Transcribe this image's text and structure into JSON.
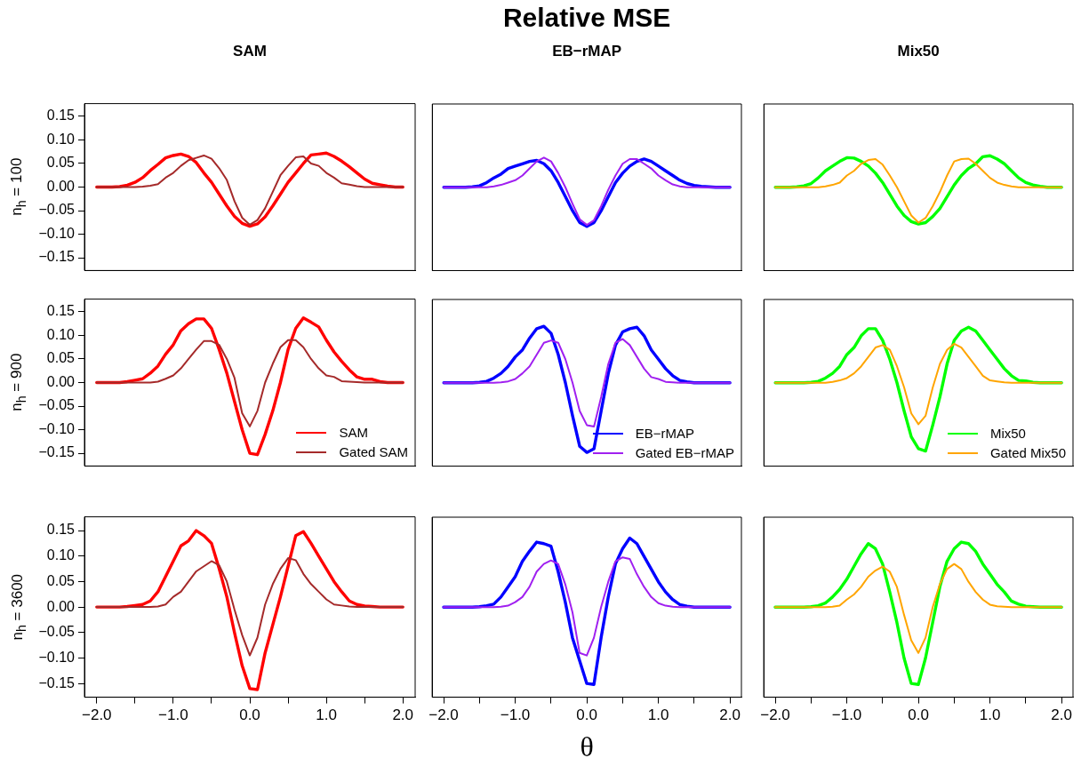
{
  "chart_data": [
    {
      "type": "line",
      "subtitle": "SAM",
      "ylabel": "n$_{h}$ = 100",
      "tick_labels": "y",
      "x": [
        -2,
        -1.9,
        -1.8,
        -1.7,
        -1.6,
        -1.5,
        -1.4,
        -1.3,
        -1.2,
        -1.1,
        -1,
        -0.9,
        -0.8,
        -0.7,
        -0.6,
        -0.5,
        -0.4,
        -0.3,
        -0.2,
        -0.1,
        0,
        0.1,
        0.2,
        0.3,
        0.4,
        0.5,
        0.6,
        0.7,
        0.8,
        0.9,
        1,
        1.1,
        1.2,
        1.3,
        1.4,
        1.5,
        1.6,
        1.7,
        1.8,
        1.9,
        2
      ],
      "xlim": [
        -2.16,
        2.16
      ],
      "ylim": [
        -0.177,
        0.177
      ],
      "yticks": [
        {
          "value": -0.15,
          "label": "−0.15"
        },
        {
          "value": -0.1,
          "label": "−0.10"
        },
        {
          "value": -0.05,
          "label": "−0.05"
        },
        {
          "value": 0,
          "label": "0.00"
        },
        {
          "value": 0.05,
          "label": "0.05"
        },
        {
          "value": 0.1,
          "label": "0.10"
        },
        {
          "value": 0.15,
          "label": "0.15"
        }
      ],
      "series": [
        {
          "color": "#ff0000",
          "values": [
            0,
            0,
            0,
            0.001,
            0.004,
            0.01,
            0.02,
            0.035,
            0.048,
            0.062,
            0.067,
            0.07,
            0.065,
            0.052,
            0.03,
            0.01,
            -0.015,
            -0.04,
            -0.062,
            -0.077,
            -0.083,
            -0.078,
            -0.063,
            -0.04,
            -0.015,
            0.01,
            0.03,
            0.05,
            0.068,
            0.07,
            0.072,
            0.065,
            0.055,
            0.043,
            0.03,
            0.017,
            0.008,
            0.005,
            0.002,
            0,
            0
          ]
        },
        {
          "color": "#a52a2a",
          "values": [
            0,
            0,
            0,
            0,
            0,
            0,
            0.001,
            0.003,
            0.006,
            0.02,
            0.03,
            0.045,
            0.057,
            0.062,
            0.067,
            0.06,
            0.04,
            0.015,
            -0.03,
            -0.065,
            -0.08,
            -0.07,
            -0.045,
            -0.01,
            0.025,
            0.045,
            0.063,
            0.065,
            0.05,
            0.045,
            0.03,
            0.02,
            0.008,
            0.005,
            0.002,
            0,
            0,
            0,
            0,
            0,
            0
          ]
        }
      ]
    },
    {
      "type": "line",
      "title": "Relative MSE",
      "subtitle": "EB−rMAP",
      "tick_labels": false,
      "x": [
        -2,
        -1.9,
        -1.8,
        -1.7,
        -1.6,
        -1.5,
        -1.4,
        -1.3,
        -1.2,
        -1.1,
        -1,
        -0.9,
        -0.8,
        -0.7,
        -0.6,
        -0.5,
        -0.4,
        -0.3,
        -0.2,
        -0.1,
        0,
        0.1,
        0.2,
        0.3,
        0.4,
        0.5,
        0.6,
        0.7,
        0.8,
        0.9,
        1,
        1.1,
        1.2,
        1.3,
        1.4,
        1.5,
        1.6,
        1.7,
        1.8,
        1.9,
        2
      ],
      "xlim": [
        -2.16,
        2.16
      ],
      "ylim": [
        -0.177,
        0.177
      ],
      "series": [
        {
          "color": "#0000ff",
          "values": [
            0,
            0,
            0,
            0,
            0.001,
            0.003,
            0.01,
            0.02,
            0.028,
            0.04,
            0.045,
            0.05,
            0.055,
            0.057,
            0.05,
            0.035,
            0.01,
            -0.02,
            -0.05,
            -0.075,
            -0.083,
            -0.075,
            -0.05,
            -0.02,
            0.01,
            0.03,
            0.045,
            0.055,
            0.06,
            0.055,
            0.045,
            0.035,
            0.025,
            0.015,
            0.008,
            0.004,
            0.002,
            0.001,
            0,
            0,
            0
          ]
        },
        {
          "color": "#a020f0",
          "values": [
            0,
            0,
            0,
            0,
            0,
            0,
            0,
            0.002,
            0.005,
            0.01,
            0.015,
            0.025,
            0.04,
            0.055,
            0.063,
            0.055,
            0.03,
            0,
            -0.035,
            -0.068,
            -0.08,
            -0.07,
            -0.04,
            -0.005,
            0.025,
            0.05,
            0.06,
            0.06,
            0.05,
            0.04,
            0.025,
            0.015,
            0.006,
            0.002,
            0,
            0,
            0,
            0,
            0,
            0,
            0
          ]
        }
      ]
    },
    {
      "type": "line",
      "subtitle": "Mix50",
      "tick_labels": false,
      "x": [
        -2,
        -1.9,
        -1.8,
        -1.7,
        -1.6,
        -1.5,
        -1.4,
        -1.3,
        -1.2,
        -1.1,
        -1,
        -0.9,
        -0.8,
        -0.7,
        -0.6,
        -0.5,
        -0.4,
        -0.3,
        -0.2,
        -0.1,
        0,
        0.1,
        0.2,
        0.3,
        0.4,
        0.5,
        0.6,
        0.7,
        0.8,
        0.9,
        1,
        1.1,
        1.2,
        1.3,
        1.4,
        1.5,
        1.6,
        1.7,
        1.8,
        1.9,
        2
      ],
      "xlim": [
        -2.16,
        2.16
      ],
      "ylim": [
        -0.177,
        0.177
      ],
      "series": [
        {
          "color": "#00ff00",
          "values": [
            0,
            0,
            0,
            0.001,
            0.003,
            0.008,
            0.02,
            0.035,
            0.045,
            0.055,
            0.063,
            0.062,
            0.055,
            0.045,
            0.03,
            0.01,
            -0.015,
            -0.04,
            -0.06,
            -0.073,
            -0.078,
            -0.075,
            -0.062,
            -0.045,
            -0.02,
            0.005,
            0.025,
            0.04,
            0.05,
            0.065,
            0.067,
            0.06,
            0.05,
            0.035,
            0.02,
            0.01,
            0.005,
            0.002,
            0,
            0,
            0
          ]
        },
        {
          "color": "#ffa500",
          "values": [
            0,
            0,
            0,
            0,
            0,
            0,
            0,
            0.002,
            0.005,
            0.01,
            0.025,
            0.035,
            0.05,
            0.058,
            0.06,
            0.048,
            0.025,
            0,
            -0.03,
            -0.06,
            -0.075,
            -0.065,
            -0.04,
            -0.01,
            0.025,
            0.055,
            0.06,
            0.061,
            0.05,
            0.035,
            0.02,
            0.01,
            0.005,
            0.002,
            0,
            0,
            0,
            0,
            0,
            0,
            0
          ]
        }
      ]
    },
    {
      "type": "line",
      "ylabel": "n$_{h}$ = 900",
      "tick_labels": "y",
      "legend": "bottom right",
      "x": [
        -2,
        -1.9,
        -1.8,
        -1.7,
        -1.6,
        -1.5,
        -1.4,
        -1.3,
        -1.2,
        -1.1,
        -1,
        -0.9,
        -0.8,
        -0.7,
        -0.6,
        -0.5,
        -0.4,
        -0.3,
        -0.2,
        -0.1,
        0,
        0.1,
        0.2,
        0.3,
        0.4,
        0.5,
        0.6,
        0.7,
        0.8,
        0.9,
        1,
        1.1,
        1.2,
        1.3,
        1.4,
        1.5,
        1.6,
        1.7,
        1.8,
        1.9,
        2
      ],
      "xlim": [
        -2.16,
        2.16
      ],
      "ylim": [
        -0.177,
        0.177
      ],
      "yticks": [
        {
          "value": -0.15,
          "label": "−0.15"
        },
        {
          "value": -0.1,
          "label": "−0.10"
        },
        {
          "value": -0.05,
          "label": "−0.05"
        },
        {
          "value": 0,
          "label": "0.00"
        },
        {
          "value": 0.05,
          "label": "0.05"
        },
        {
          "value": 0.1,
          "label": "0.10"
        },
        {
          "value": 0.15,
          "label": "0.15"
        }
      ],
      "series": [
        {
          "name": "SAM",
          "color": "#ff0000",
          "values": [
            0,
            0,
            0,
            0,
            0.002,
            0.005,
            0.008,
            0.02,
            0.035,
            0.06,
            0.08,
            0.11,
            0.125,
            0.135,
            0.135,
            0.115,
            0.07,
            0.02,
            -0.04,
            -0.1,
            -0.15,
            -0.153,
            -0.11,
            -0.06,
            0,
            0.07,
            0.115,
            0.137,
            0.128,
            0.118,
            0.09,
            0.065,
            0.045,
            0.027,
            0.012,
            0.007,
            0.007,
            0.002,
            0,
            0,
            0
          ]
        },
        {
          "name": "Gated SAM",
          "color": "#a52a2a",
          "values": [
            0,
            0,
            0,
            0,
            0,
            0,
            0,
            0,
            0.002,
            0.008,
            0.015,
            0.03,
            0.05,
            0.07,
            0.088,
            0.088,
            0.08,
            0.05,
            0.01,
            -0.065,
            -0.093,
            -0.06,
            0,
            0.04,
            0.075,
            0.09,
            0.09,
            0.075,
            0.05,
            0.03,
            0.015,
            0.012,
            0.003,
            0.002,
            0.001,
            0,
            0,
            0,
            0,
            0,
            0
          ]
        }
      ]
    },
    {
      "type": "line",
      "tick_labels": false,
      "legend": "bottom right",
      "x": [
        -2,
        -1.9,
        -1.8,
        -1.7,
        -1.6,
        -1.5,
        -1.4,
        -1.3,
        -1.2,
        -1.1,
        -1,
        -0.9,
        -0.8,
        -0.7,
        -0.6,
        -0.5,
        -0.4,
        -0.3,
        -0.2,
        -0.1,
        0,
        0.1,
        0.2,
        0.3,
        0.4,
        0.5,
        0.6,
        0.7,
        0.8,
        0.9,
        1,
        1.1,
        1.2,
        1.3,
        1.4,
        1.5,
        1.6,
        1.7,
        1.8,
        1.9,
        2
      ],
      "xlim": [
        -2.16,
        2.16
      ],
      "ylim": [
        -0.177,
        0.177
      ],
      "series": [
        {
          "name": "EB−rMAP",
          "color": "#0000ff",
          "values": [
            0,
            0,
            0,
            0,
            0,
            0.001,
            0.003,
            0.01,
            0.02,
            0.035,
            0.055,
            0.07,
            0.095,
            0.115,
            0.12,
            0.105,
            0.06,
            0,
            -0.07,
            -0.135,
            -0.148,
            -0.14,
            -0.06,
            0.02,
            0.08,
            0.108,
            0.115,
            0.118,
            0.1,
            0.07,
            0.05,
            0.03,
            0.015,
            0.005,
            0.002,
            0,
            0,
            0,
            0,
            0,
            0
          ]
        },
        {
          "name": "Gated EB−rMAP",
          "color": "#a020f0",
          "values": [
            0,
            0,
            0,
            0,
            0,
            0,
            0,
            0,
            0.001,
            0.003,
            0.008,
            0.02,
            0.035,
            0.06,
            0.085,
            0.09,
            0.085,
            0.05,
            0,
            -0.06,
            -0.09,
            -0.093,
            -0.03,
            0.04,
            0.085,
            0.093,
            0.08,
            0.055,
            0.03,
            0.012,
            0.008,
            0.002,
            0.001,
            0,
            0,
            0,
            0,
            0,
            0,
            0,
            0
          ]
        }
      ]
    },
    {
      "type": "line",
      "tick_labels": false,
      "legend": "bottom right",
      "x": [
        -2,
        -1.9,
        -1.8,
        -1.7,
        -1.6,
        -1.5,
        -1.4,
        -1.3,
        -1.2,
        -1.1,
        -1,
        -0.9,
        -0.8,
        -0.7,
        -0.6,
        -0.5,
        -0.4,
        -0.3,
        -0.2,
        -0.1,
        0,
        0.1,
        0.2,
        0.3,
        0.4,
        0.5,
        0.6,
        0.7,
        0.8,
        0.9,
        1,
        1.1,
        1.2,
        1.3,
        1.4,
        1.5,
        1.6,
        1.7,
        1.8,
        1.9,
        2
      ],
      "xlim": [
        -2.16,
        2.16
      ],
      "ylim": [
        -0.177,
        0.177
      ],
      "series": [
        {
          "name": "Mix50",
          "color": "#00ff00",
          "values": [
            0,
            0,
            0,
            0,
            0,
            0.001,
            0.003,
            0.01,
            0.02,
            0.035,
            0.06,
            0.075,
            0.1,
            0.115,
            0.115,
            0.09,
            0.05,
            0,
            -0.06,
            -0.115,
            -0.14,
            -0.145,
            -0.09,
            -0.03,
            0.04,
            0.09,
            0.11,
            0.118,
            0.11,
            0.09,
            0.07,
            0.05,
            0.03,
            0.015,
            0.005,
            0.004,
            0.001,
            0,
            0,
            0,
            0
          ]
        },
        {
          "name": "Gated Mix50",
          "color": "#ffa500",
          "values": [
            0,
            0,
            0,
            0,
            0,
            0,
            0,
            0,
            0.002,
            0.005,
            0.01,
            0.02,
            0.035,
            0.055,
            0.075,
            0.08,
            0.07,
            0.035,
            -0.01,
            -0.065,
            -0.088,
            -0.07,
            -0.01,
            0.04,
            0.07,
            0.083,
            0.075,
            0.055,
            0.035,
            0.015,
            0.005,
            0.003,
            0.001,
            0,
            0,
            0,
            0,
            0,
            0,
            0,
            0
          ]
        }
      ]
    },
    {
      "type": "line",
      "ylabel": "n$_{h}$ = 3600",
      "x": [
        -2,
        -1.9,
        -1.8,
        -1.7,
        -1.6,
        -1.5,
        -1.4,
        -1.3,
        -1.2,
        -1.1,
        -1,
        -0.9,
        -0.8,
        -0.7,
        -0.6,
        -0.5,
        -0.4,
        -0.3,
        -0.2,
        -0.1,
        0,
        0.1,
        0.2,
        0.3,
        0.4,
        0.5,
        0.6,
        0.7,
        0.8,
        0.9,
        1,
        1.1,
        1.2,
        1.3,
        1.4,
        1.5,
        1.6,
        1.7,
        1.8,
        1.9,
        2
      ],
      "xlim": [
        -2.16,
        2.16
      ],
      "ylim": [
        -0.177,
        0.177
      ],
      "xticks": [
        {
          "value": -2,
          "label": "−2.0"
        },
        {
          "value": -1.5,
          "label": null
        },
        {
          "value": -1,
          "label": "−1.0"
        },
        {
          "value": -0.5,
          "label": null
        },
        {
          "value": 0,
          "label": "0.0"
        },
        {
          "value": 0.5,
          "label": null
        },
        {
          "value": 1,
          "label": "1.0"
        },
        {
          "value": 1.5,
          "label": null
        },
        {
          "value": 2,
          "label": "2.0"
        }
      ],
      "yticks": [
        {
          "value": -0.15,
          "label": "−0.15"
        },
        {
          "value": -0.1,
          "label": "−0.10"
        },
        {
          "value": -0.05,
          "label": "−0.05"
        },
        {
          "value": 0,
          "label": "0.00"
        },
        {
          "value": 0.05,
          "label": "0.05"
        },
        {
          "value": 0.1,
          "label": "0.10"
        },
        {
          "value": 0.15,
          "label": "0.15"
        }
      ],
      "series": [
        {
          "color": "#ff0000",
          "values": [
            0,
            0,
            0,
            0,
            0.001,
            0.003,
            0.005,
            0.012,
            0.03,
            0.06,
            0.09,
            0.12,
            0.13,
            0.15,
            0.14,
            0.125,
            0.075,
            0.02,
            -0.05,
            -0.115,
            -0.16,
            -0.162,
            -0.09,
            -0.035,
            0.02,
            0.08,
            0.14,
            0.148,
            0.125,
            0.1,
            0.075,
            0.05,
            0.03,
            0.012,
            0.005,
            0.002,
            0.001,
            0,
            0,
            0,
            0
          ]
        },
        {
          "color": "#a52a2a",
          "values": [
            0,
            0,
            0,
            0,
            0,
            0,
            0,
            0,
            0.001,
            0.005,
            0.02,
            0.03,
            0.05,
            0.07,
            0.08,
            0.09,
            0.082,
            0.05,
            -0.005,
            -0.055,
            -0.095,
            -0.06,
            0.005,
            0.045,
            0.075,
            0.096,
            0.092,
            0.065,
            0.045,
            0.03,
            0.015,
            0.005,
            0.003,
            0.001,
            0,
            0,
            0,
            0,
            0,
            0,
            0
          ]
        }
      ]
    },
    {
      "type": "line",
      "xlabel": "θ",
      "tick_labels": "x",
      "x": [
        -2,
        -1.9,
        -1.8,
        -1.7,
        -1.6,
        -1.5,
        -1.4,
        -1.3,
        -1.2,
        -1.1,
        -1,
        -0.9,
        -0.8,
        -0.7,
        -0.6,
        -0.5,
        -0.4,
        -0.3,
        -0.2,
        -0.1,
        0,
        0.1,
        0.2,
        0.3,
        0.4,
        0.5,
        0.6,
        0.7,
        0.8,
        0.9,
        1,
        1.1,
        1.2,
        1.3,
        1.4,
        1.5,
        1.6,
        1.7,
        1.8,
        1.9,
        2
      ],
      "xlim": [
        -2.16,
        2.16
      ],
      "ylim": [
        -0.177,
        0.177
      ],
      "xticks": [
        {
          "value": -2,
          "label": "−2.0"
        },
        {
          "value": -1.5,
          "label": null
        },
        {
          "value": -1,
          "label": "−1.0"
        },
        {
          "value": -0.5,
          "label": null
        },
        {
          "value": 0,
          "label": "0.0"
        },
        {
          "value": 0.5,
          "label": null
        },
        {
          "value": 1,
          "label": "1.0"
        },
        {
          "value": 1.5,
          "label": null
        },
        {
          "value": 2,
          "label": "2.0"
        }
      ],
      "series": [
        {
          "color": "#0000ff",
          "values": [
            0,
            0,
            0,
            0,
            0,
            0.001,
            0.003,
            0.006,
            0.02,
            0.04,
            0.06,
            0.09,
            0.11,
            0.128,
            0.125,
            0.12,
            0.07,
            0.01,
            -0.06,
            -0.105,
            -0.15,
            -0.152,
            -0.06,
            0.02,
            0.085,
            0.115,
            0.136,
            0.125,
            0.1,
            0.075,
            0.05,
            0.03,
            0.015,
            0.005,
            0.002,
            0,
            0,
            0,
            0,
            0,
            0
          ]
        },
        {
          "color": "#a020f0",
          "values": [
            0,
            0,
            0,
            0,
            0,
            0,
            0,
            0,
            0.001,
            0.003,
            0.01,
            0.02,
            0.04,
            0.07,
            0.085,
            0.092,
            0.085,
            0.045,
            -0.01,
            -0.09,
            -0.095,
            -0.06,
            0,
            0.05,
            0.09,
            0.098,
            0.095,
            0.065,
            0.04,
            0.02,
            0.008,
            0.003,
            0.001,
            0,
            0,
            0,
            0,
            0,
            0,
            0,
            0
          ]
        }
      ]
    },
    {
      "type": "line",
      "tick_labels": "x",
      "x": [
        -2,
        -1.9,
        -1.8,
        -1.7,
        -1.6,
        -1.5,
        -1.4,
        -1.3,
        -1.2,
        -1.1,
        -1,
        -0.9,
        -0.8,
        -0.7,
        -0.6,
        -0.5,
        -0.4,
        -0.3,
        -0.2,
        -0.1,
        0,
        0.1,
        0.2,
        0.3,
        0.4,
        0.5,
        0.6,
        0.7,
        0.8,
        0.9,
        1,
        1.1,
        1.2,
        1.3,
        1.4,
        1.5,
        1.6,
        1.7,
        1.8,
        1.9,
        2
      ],
      "xlim": [
        -2.16,
        2.16
      ],
      "ylim": [
        -0.177,
        0.177
      ],
      "xticks": [
        {
          "value": -2,
          "label": "−2.0"
        },
        {
          "value": -1.5,
          "label": null
        },
        {
          "value": -1,
          "label": "−1.0"
        },
        {
          "value": -0.5,
          "label": null
        },
        {
          "value": 0,
          "label": "0.0"
        },
        {
          "value": 0.5,
          "label": null
        },
        {
          "value": 1,
          "label": "1.0"
        },
        {
          "value": 1.5,
          "label": null
        },
        {
          "value": 2,
          "label": "2.0"
        }
      ],
      "series": [
        {
          "color": "#00ff00",
          "values": [
            0,
            0,
            0,
            0,
            0,
            0.001,
            0.003,
            0.008,
            0.02,
            0.035,
            0.055,
            0.08,
            0.105,
            0.125,
            0.115,
            0.085,
            0.03,
            -0.03,
            -0.1,
            -0.15,
            -0.152,
            -0.1,
            -0.03,
            0.04,
            0.09,
            0.115,
            0.128,
            0.125,
            0.11,
            0.085,
            0.065,
            0.045,
            0.03,
            0.012,
            0.006,
            0.002,
            0.001,
            0,
            0,
            0,
            0
          ]
        },
        {
          "color": "#ffa500",
          "values": [
            0,
            0,
            0,
            0,
            0,
            0,
            0,
            0,
            0.001,
            0.003,
            0.015,
            0.025,
            0.04,
            0.06,
            0.072,
            0.08,
            0.07,
            0.04,
            -0.015,
            -0.065,
            -0.09,
            -0.06,
            0,
            0.045,
            0.075,
            0.085,
            0.075,
            0.05,
            0.03,
            0.015,
            0.005,
            0.002,
            0.001,
            0,
            0,
            0,
            0,
            0,
            0,
            0,
            0
          ]
        }
      ]
    }
  ]
}
